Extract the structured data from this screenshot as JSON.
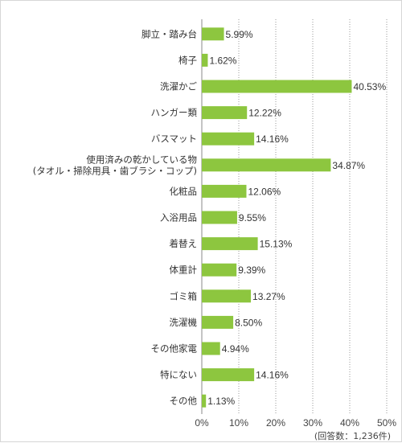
{
  "chart_data": {
    "type": "bar",
    "orientation": "horizontal",
    "categories": [
      [
        "脚立・踏み台"
      ],
      [
        "椅子"
      ],
      [
        "洗濯かご"
      ],
      [
        "ハンガー類"
      ],
      [
        "バスマット"
      ],
      [
        "使用済みの乾かしている物",
        "(タオル・掃除用具・歯ブラシ・コップ)"
      ],
      [
        "化粧品"
      ],
      [
        "入浴用品"
      ],
      [
        "着替え"
      ],
      [
        "体重計"
      ],
      [
        "ゴミ箱"
      ],
      [
        "洗濯機"
      ],
      [
        "その他家電"
      ],
      [
        "特にない"
      ],
      [
        "その他"
      ]
    ],
    "values": [
      5.99,
      1.62,
      40.53,
      12.22,
      14.16,
      34.87,
      12.06,
      9.55,
      15.13,
      9.39,
      13.27,
      8.5,
      4.94,
      14.16,
      1.13
    ],
    "value_labels": [
      "5.99%",
      "1.62%",
      "40.53%",
      "12.22%",
      "14.16%",
      "34.87%",
      "12.06%",
      "9.55%",
      "15.13%",
      "9.39%",
      "13.27%",
      "8.50%",
      "4.94%",
      "14.16%",
      "1.13%"
    ],
    "xlim": [
      0,
      50
    ],
    "ticks": [
      0,
      10,
      20,
      30,
      40,
      50
    ],
    "tick_labels": [
      "0%",
      "10%",
      "20%",
      "30%",
      "40%",
      "50%"
    ],
    "note": "(回答数：1,236件)",
    "grid": "vertical-dotted",
    "bar_color": "#8dc63f",
    "axis_color": "#888888",
    "grid_color": "#9a9a9a"
  }
}
